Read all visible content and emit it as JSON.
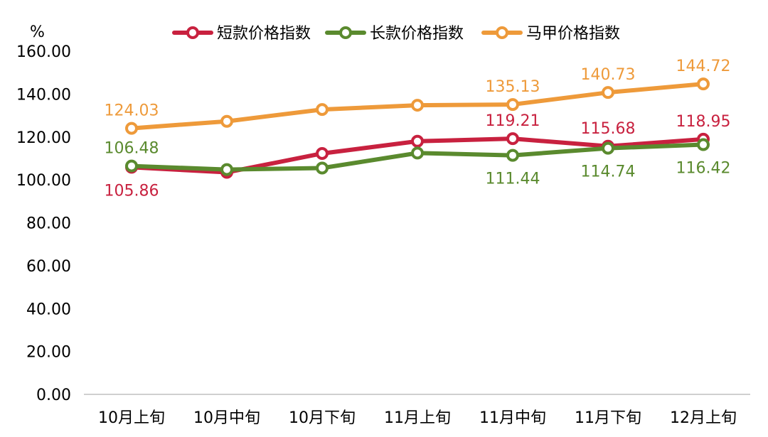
{
  "chart_data": {
    "type": "line",
    "title": "",
    "xlabel": "",
    "ylabel": "%",
    "categories": [
      "10月上旬",
      "10月中旬",
      "10月下旬",
      "11月上旬",
      "11月中旬",
      "11月下旬",
      "12月上旬"
    ],
    "ylim": [
      0,
      160
    ],
    "yticks": [
      "0.00",
      "20.00",
      "40.00",
      "60.00",
      "80.00",
      "100.00",
      "120.00",
      "140.00",
      "160.00"
    ],
    "grid": false,
    "legend_position": "top",
    "series": [
      {
        "name": "短款价格指数",
        "color": "#c8213f",
        "values": [
          105.86,
          103.5,
          112.3,
          118.0,
          119.21,
          115.68,
          118.95
        ],
        "labels": [
          "105.86",
          "",
          "",
          "",
          "119.21",
          "115.68",
          "118.95"
        ],
        "label_pos": [
          "below",
          "",
          "",
          "",
          "above",
          "above",
          "above"
        ]
      },
      {
        "name": "长款价格指数",
        "color": "#5a8a2e",
        "values": [
          106.48,
          104.8,
          105.5,
          112.5,
          111.44,
          114.74,
          116.42
        ],
        "labels": [
          "106.48",
          "",
          "",
          "",
          "111.44",
          "114.74",
          "116.42"
        ],
        "label_pos": [
          "above",
          "",
          "",
          "",
          "below",
          "below",
          "below"
        ]
      },
      {
        "name": "马甲价格指数",
        "color": "#ee9a3a",
        "values": [
          124.03,
          127.3,
          132.8,
          134.8,
          135.13,
          140.73,
          144.72
        ],
        "labels": [
          "124.03",
          "",
          "",
          "",
          "135.13",
          "140.73",
          "144.72"
        ],
        "label_pos": [
          "above",
          "",
          "",
          "",
          "above",
          "above",
          "above"
        ]
      }
    ]
  }
}
